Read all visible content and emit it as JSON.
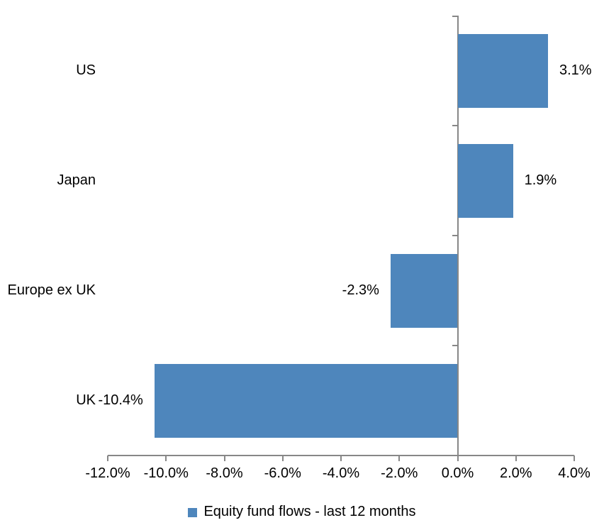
{
  "chart_data": {
    "type": "bar",
    "orientation": "horizontal",
    "title": "",
    "categories": [
      "US",
      "Japan",
      "Europe ex UK",
      "UK"
    ],
    "series": [
      {
        "name": "Equity fund flows - last 12 months",
        "values": [
          3.1,
          1.9,
          -2.3,
          -10.4
        ],
        "data_labels": [
          "3.1%",
          "1.9%",
          "-2.3%",
          "-10.4%"
        ]
      }
    ],
    "xlim": [
      -12,
      4
    ],
    "x_tick_values": [
      -12,
      -10,
      -8,
      -6,
      -4,
      -2,
      0,
      2,
      4
    ],
    "x_tick_labels": [
      "-12.0%",
      "-10.0%",
      "-8.0%",
      "-6.0%",
      "-4.0%",
      "-2.0%",
      "0.0%",
      "2.0%",
      "4.0%"
    ],
    "grid": false,
    "legend_position": "bottom",
    "bar_color": "#4E86BC",
    "axis_color": "#878787",
    "text_color": "#000000"
  },
  "legend": {
    "label": "Equity fund flows - last 12 months",
    "swatch_color": "#4E86BC"
  }
}
